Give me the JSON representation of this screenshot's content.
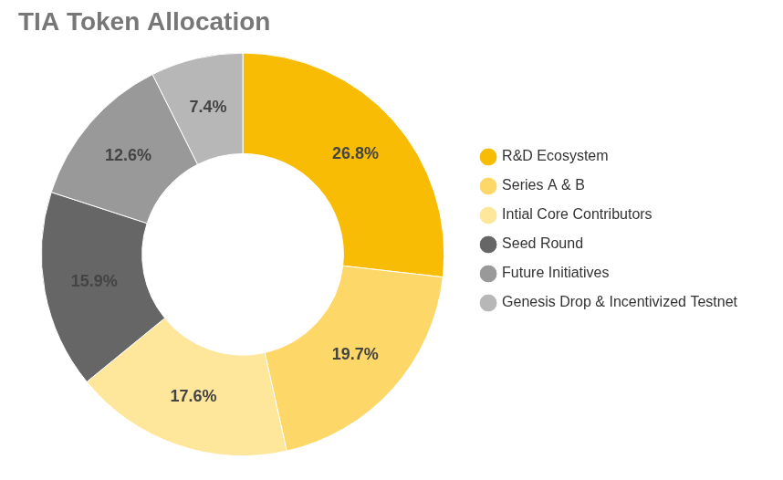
{
  "chart_data": {
    "type": "doughnut",
    "title": "TIA Token Allocation",
    "categories": [
      "R&D Ecosystem",
      "Series A & B",
      "Intial Core Contributors",
      "Seed Round",
      "Future Initiatives",
      "Genesis Drop & Incentivized Testnet"
    ],
    "values": [
      26.8,
      19.7,
      17.6,
      15.9,
      12.6,
      7.4
    ],
    "value_labels": [
      "26.8%",
      "19.7%",
      "17.6%",
      "15.9%",
      "12.6%",
      "7.4%"
    ],
    "colors": [
      "#f9bc05",
      "#fdd868",
      "#fee69b",
      "#666666",
      "#999999",
      "#b7b7b7"
    ],
    "legend": "right",
    "data_labels": true
  }
}
